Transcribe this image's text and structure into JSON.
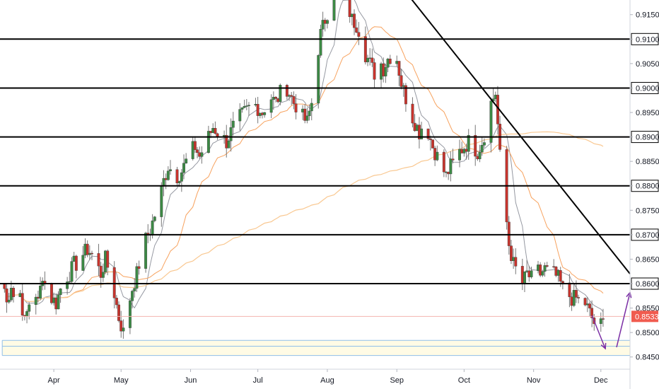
{
  "chart_data": {
    "type": "candlestick",
    "title": "",
    "xlabel": "",
    "ylabel": "",
    "ylim": [
      0.8425,
      0.918
    ],
    "grid": false,
    "legend": "none",
    "x_ticks": [
      {
        "label": "Apr",
        "day": 29
      },
      {
        "label": "May",
        "day": 59
      },
      {
        "label": "Jun",
        "day": 90
      },
      {
        "label": "Jul",
        "day": 120
      },
      {
        "label": "Aug",
        "day": 151
      },
      {
        "label": "Sep",
        "day": 182
      },
      {
        "label": "Oct",
        "day": 212
      },
      {
        "label": "Nov",
        "day": 243
      },
      {
        "label": "Dec",
        "day": 273
      }
    ],
    "x_range_days": [
      5,
      286
    ],
    "y_ticks": [
      {
        "label": "0.91500",
        "value": 0.915
      },
      {
        "label": "0.91000",
        "value": 0.91,
        "boxed": true
      },
      {
        "label": "0.90500",
        "value": 0.905
      },
      {
        "label": "0.90000",
        "value": 0.9,
        "boxed": true
      },
      {
        "label": "0.89500",
        "value": 0.895
      },
      {
        "label": "0.89000",
        "value": 0.89,
        "boxed": true
      },
      {
        "label": "0.88500",
        "value": 0.885
      },
      {
        "label": "0.88000",
        "value": 0.88,
        "boxed": true
      },
      {
        "label": "0.87500",
        "value": 0.875
      },
      {
        "label": "0.87000",
        "value": 0.87,
        "boxed": true
      },
      {
        "label": "0.86500",
        "value": 0.865
      },
      {
        "label": "0.86000",
        "value": 0.86,
        "boxed": true
      },
      {
        "label": "0.85500",
        "value": 0.855
      },
      {
        "label": "0.85000",
        "value": 0.85
      },
      {
        "label": "0.84500",
        "value": 0.845
      }
    ],
    "last_price": {
      "label": "0.85330",
      "value": 0.8533
    },
    "horizontal_levels": [
      0.91,
      0.9,
      0.89,
      0.88,
      0.87,
      0.86
    ],
    "trendline": {
      "from": {
        "day": 181,
        "value": 0.9225
      },
      "to": {
        "day": 286,
        "value": 0.862
      }
    },
    "support_zone": {
      "from_day": 6,
      "top": 0.8484,
      "bottom": 0.8453,
      "mid": 0.8472
    },
    "projection": [
      {
        "day": 269,
        "value": 0.8535
      },
      {
        "day": 275,
        "value": 0.8467
      },
      {
        "day": 280,
        "value": 0.847
      },
      {
        "day": 286,
        "value": 0.8582
      }
    ],
    "close_path": [
      [
        6,
        0.862
      ],
      [
        8,
        0.856
      ],
      [
        10,
        0.86
      ],
      [
        12,
        0.855
      ],
      [
        14,
        0.858
      ],
      [
        16,
        0.852
      ],
      [
        18,
        0.856
      ],
      [
        20,
        0.86
      ],
      [
        22,
        0.856
      ],
      [
        24,
        0.862
      ],
      [
        26,
        0.858
      ],
      [
        28,
        0.857
      ],
      [
        30,
        0.856
      ],
      [
        32,
        0.859
      ],
      [
        34,
        0.861
      ],
      [
        36,
        0.862
      ],
      [
        38,
        0.864
      ],
      [
        40,
        0.864
      ],
      [
        42,
        0.866
      ],
      [
        44,
        0.867
      ],
      [
        46,
        0.866
      ],
      [
        48,
        0.864
      ],
      [
        50,
        0.862
      ],
      [
        52,
        0.865
      ],
      [
        54,
        0.862
      ],
      [
        56,
        0.858
      ],
      [
        58,
        0.853
      ],
      [
        60,
        0.85
      ],
      [
        62,
        0.855
      ],
      [
        64,
        0.859
      ],
      [
        66,
        0.862
      ],
      [
        68,
        0.866
      ],
      [
        70,
        0.869
      ],
      [
        72,
        0.871
      ],
      [
        74,
        0.874
      ],
      [
        76,
        0.877
      ],
      [
        78,
        0.881
      ],
      [
        80,
        0.884
      ],
      [
        82,
        0.883
      ],
      [
        84,
        0.882
      ],
      [
        86,
        0.883
      ],
      [
        88,
        0.885
      ],
      [
        90,
        0.887
      ],
      [
        92,
        0.888
      ],
      [
        94,
        0.886
      ],
      [
        96,
        0.888
      ],
      [
        98,
        0.89
      ],
      [
        100,
        0.892
      ],
      [
        102,
        0.891
      ],
      [
        104,
        0.89
      ],
      [
        106,
        0.889
      ],
      [
        108,
        0.891
      ],
      [
        110,
        0.893
      ],
      [
        112,
        0.894
      ],
      [
        114,
        0.895
      ],
      [
        116,
        0.896
      ],
      [
        118,
        0.897
      ],
      [
        120,
        0.896
      ],
      [
        122,
        0.895
      ],
      [
        124,
        0.897
      ],
      [
        126,
        0.898
      ],
      [
        128,
        0.897
      ],
      [
        130,
        0.899
      ],
      [
        132,
        0.901
      ],
      [
        134,
        0.899
      ],
      [
        136,
        0.897
      ],
      [
        138,
        0.896
      ],
      [
        140,
        0.894
      ],
      [
        142,
        0.893
      ],
      [
        144,
        0.897
      ],
      [
        146,
        0.905
      ],
      [
        148,
        0.911
      ],
      [
        150,
        0.914
      ],
      [
        152,
        0.917
      ],
      [
        154,
        0.92
      ],
      [
        156,
        0.921
      ],
      [
        158,
        0.919
      ],
      [
        160,
        0.917
      ],
      [
        162,
        0.914
      ],
      [
        164,
        0.913
      ],
      [
        166,
        0.911
      ],
      [
        168,
        0.907
      ],
      [
        170,
        0.905
      ],
      [
        172,
        0.903
      ],
      [
        174,
        0.906
      ],
      [
        176,
        0.904
      ],
      [
        178,
        0.906
      ],
      [
        180,
        0.907
      ],
      [
        182,
        0.906
      ],
      [
        184,
        0.901
      ],
      [
        186,
        0.898
      ],
      [
        188,
        0.895
      ],
      [
        190,
        0.893
      ],
      [
        192,
        0.891
      ],
      [
        194,
        0.893
      ],
      [
        196,
        0.891
      ],
      [
        198,
        0.888
      ],
      [
        200,
        0.886
      ],
      [
        202,
        0.884
      ],
      [
        204,
        0.882
      ],
      [
        206,
        0.884
      ],
      [
        208,
        0.885
      ],
      [
        210,
        0.887
      ],
      [
        212,
        0.888
      ],
      [
        214,
        0.889
      ],
      [
        216,
        0.888
      ],
      [
        218,
        0.887
      ],
      [
        220,
        0.889
      ],
      [
        222,
        0.892
      ],
      [
        224,
        0.897
      ],
      [
        226,
        0.899
      ],
      [
        228,
        0.886
      ],
      [
        230,
        0.877
      ],
      [
        232,
        0.868
      ],
      [
        234,
        0.864
      ],
      [
        236,
        0.862
      ],
      [
        238,
        0.86
      ],
      [
        240,
        0.862
      ],
      [
        242,
        0.861
      ],
      [
        244,
        0.863
      ],
      [
        246,
        0.862
      ],
      [
        248,
        0.863
      ],
      [
        250,
        0.862
      ],
      [
        252,
        0.862
      ],
      [
        254,
        0.861
      ],
      [
        256,
        0.859
      ],
      [
        258,
        0.858
      ],
      [
        260,
        0.857
      ],
      [
        262,
        0.857
      ],
      [
        264,
        0.856
      ],
      [
        266,
        0.856
      ],
      [
        268,
        0.854
      ],
      [
        270,
        0.852
      ],
      [
        272,
        0.851
      ],
      [
        274,
        0.852
      ]
    ]
  }
}
